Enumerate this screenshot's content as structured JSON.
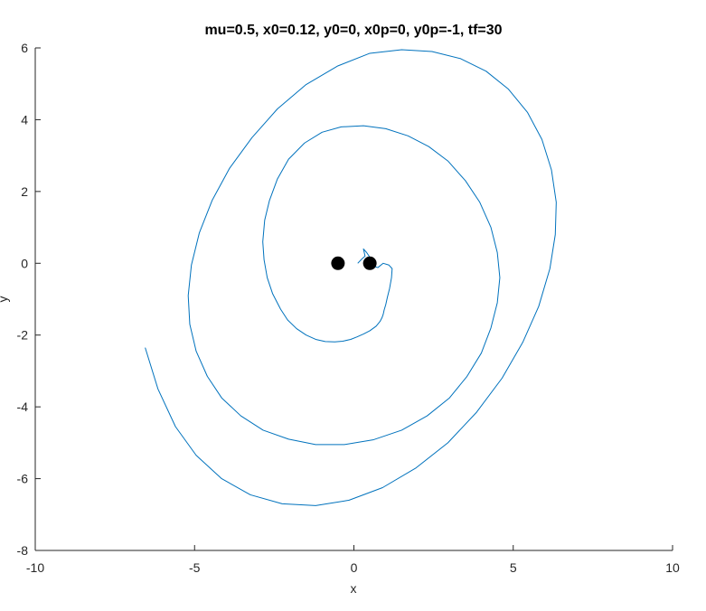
{
  "chart_data": {
    "type": "line",
    "title": "mu=0.5, x0=0.12, y0=0, x0p=0, y0p=-1, tf=30",
    "xlabel": "x",
    "ylabel": "y",
    "xlim": [
      -10,
      10
    ],
    "ylim": [
      -8,
      6
    ],
    "xticks": [
      -10,
      -5,
      0,
      5,
      10
    ],
    "yticks": [
      -8,
      -6,
      -4,
      -2,
      0,
      2,
      4,
      6
    ],
    "grid": false,
    "colors": {
      "trajectory": "#0072bd",
      "bodies": "#000000",
      "axes": "#262626"
    },
    "bodies": [
      {
        "x": -0.5,
        "y": 0
      },
      {
        "x": 0.5,
        "y": 0
      }
    ],
    "series": [
      {
        "x": [
          0.12,
          0.25,
          0.35,
          0.3,
          0.4,
          0.55,
          0.68,
          0.75,
          0.92,
          1.1,
          1.2,
          1.18,
          1.12,
          1.05,
          1.0,
          0.95,
          0.92,
          0.88,
          0.82,
          0.7,
          0.5,
          0.3,
          0.1,
          -0.1,
          -0.35,
          -0.6,
          -0.9,
          -1.2,
          -1.5,
          -1.8,
          -2.08,
          -2.3,
          -2.55,
          -2.72,
          -2.82,
          -2.86,
          -2.8,
          -2.65,
          -2.4,
          -2.05,
          -1.55,
          -1.0,
          -0.4,
          0.3,
          1.0,
          1.7,
          2.35,
          2.95,
          3.5,
          3.95,
          4.3,
          4.5,
          4.58,
          4.5,
          4.3,
          4.0,
          3.55,
          3.0,
          2.3,
          1.5,
          0.6,
          -0.3,
          -1.2,
          -2.05,
          -2.85,
          -3.55,
          -4.15,
          -4.6,
          -4.95,
          -5.15,
          -5.2,
          -5.1,
          -4.85,
          -4.45,
          -3.9,
          -3.2,
          -2.4,
          -1.5,
          -0.5,
          0.5,
          1.5,
          2.45,
          3.35,
          4.15,
          4.85,
          5.45,
          5.9,
          6.2,
          6.35,
          6.32,
          6.15,
          5.8,
          5.3,
          4.65,
          3.85,
          2.95,
          1.95,
          0.9,
          -0.15,
          -1.2,
          -2.25,
          -3.25,
          -4.15,
          -4.95,
          -5.6,
          -6.15,
          -6.55
        ],
        "y": [
          0,
          0.12,
          0.2,
          0.4,
          0.3,
          0.1,
          -0.1,
          -0.12,
          0,
          -0.05,
          -0.15,
          -0.4,
          -0.7,
          -0.95,
          -1.15,
          -1.3,
          -1.42,
          -1.52,
          -1.62,
          -1.75,
          -1.88,
          -1.97,
          -2.05,
          -2.12,
          -2.17,
          -2.19,
          -2.18,
          -2.12,
          -2.0,
          -1.82,
          -1.58,
          -1.28,
          -0.85,
          -0.4,
          0.1,
          0.6,
          1.2,
          1.75,
          2.35,
          2.9,
          3.35,
          3.65,
          3.8,
          3.83,
          3.75,
          3.55,
          3.25,
          2.85,
          2.3,
          1.7,
          1.0,
          0.3,
          -0.4,
          -1.1,
          -1.8,
          -2.5,
          -3.15,
          -3.75,
          -4.25,
          -4.65,
          -4.92,
          -5.05,
          -5.05,
          -4.9,
          -4.65,
          -4.25,
          -3.75,
          -3.15,
          -2.45,
          -1.7,
          -0.9,
          -0.05,
          0.85,
          1.75,
          2.65,
          3.5,
          4.3,
          4.98,
          5.5,
          5.85,
          5.95,
          5.9,
          5.7,
          5.35,
          4.85,
          4.2,
          3.45,
          2.6,
          1.7,
          0.8,
          -0.15,
          -1.2,
          -2.2,
          -3.2,
          -4.15,
          -5.0,
          -5.7,
          -6.25,
          -6.6,
          -6.75,
          -6.7,
          -6.45,
          -6.0,
          -5.35,
          -4.55,
          -3.5,
          -2.35
        ]
      }
    ]
  }
}
